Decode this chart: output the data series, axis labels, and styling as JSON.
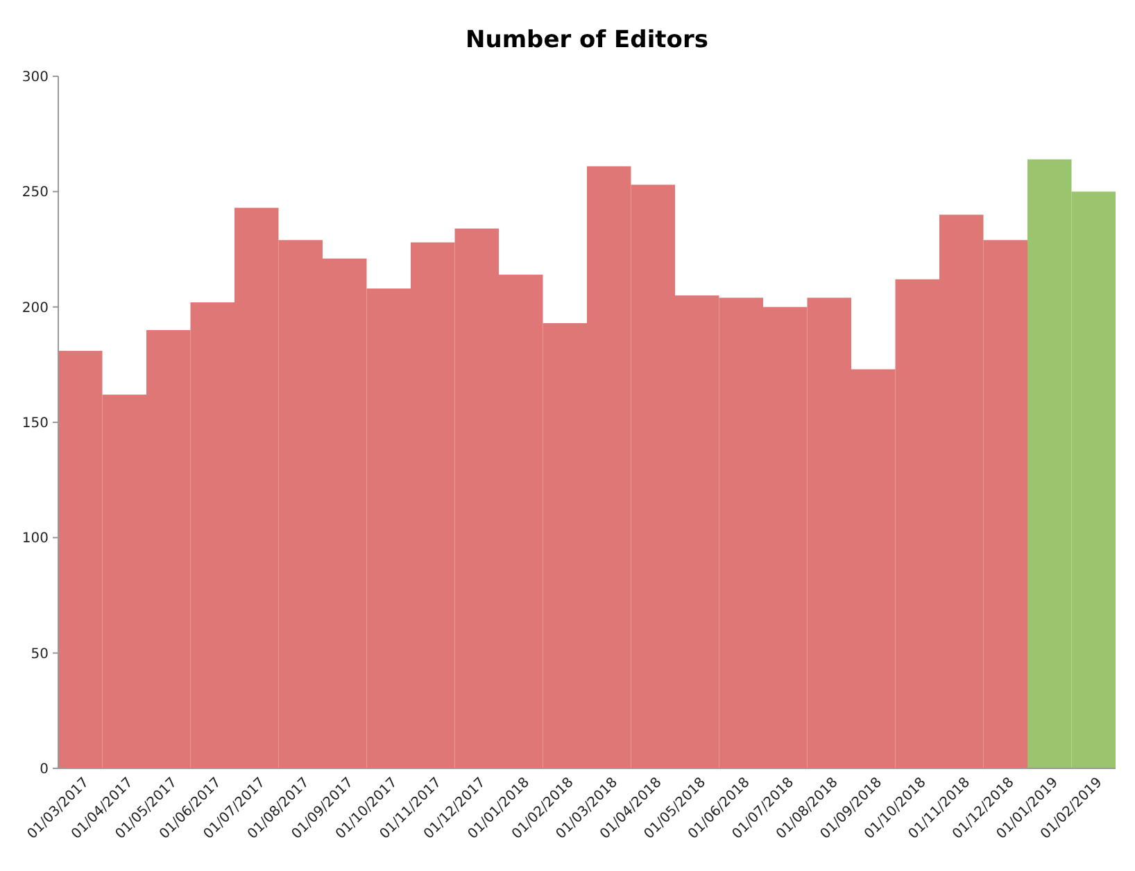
{
  "chart_data": {
    "type": "bar",
    "title": "Number of Editors",
    "categories": [
      "01/03/2017",
      "01/04/2017",
      "01/05/2017",
      "01/06/2017",
      "01/07/2017",
      "01/08/2017",
      "01/09/2017",
      "01/10/2017",
      "01/11/2017",
      "01/12/2017",
      "01/01/2018",
      "01/02/2018",
      "01/03/2018",
      "01/04/2018",
      "01/05/2018",
      "01/06/2018",
      "01/07/2018",
      "01/08/2018",
      "01/09/2018",
      "01/10/2018",
      "01/11/2018",
      "01/12/2018",
      "01/01/2019",
      "01/02/2019"
    ],
    "values": [
      181,
      162,
      190,
      202,
      243,
      229,
      221,
      208,
      228,
      234,
      214,
      193,
      261,
      253,
      205,
      204,
      200,
      204,
      173,
      212,
      240,
      229,
      264,
      250
    ],
    "colors": [
      "#e07777",
      "#e07777",
      "#e07777",
      "#e07777",
      "#e07777",
      "#e07777",
      "#e07777",
      "#e07777",
      "#e07777",
      "#e07777",
      "#e07777",
      "#e07777",
      "#e07777",
      "#e07777",
      "#e07777",
      "#e07777",
      "#e07777",
      "#e07777",
      "#e07777",
      "#e07777",
      "#e07777",
      "#e07777",
      "#9bc46f",
      "#9bc46f"
    ],
    "ylim": [
      0,
      300
    ],
    "yticks": [
      0,
      50,
      100,
      150,
      200,
      250,
      300
    ],
    "grid": false
  }
}
